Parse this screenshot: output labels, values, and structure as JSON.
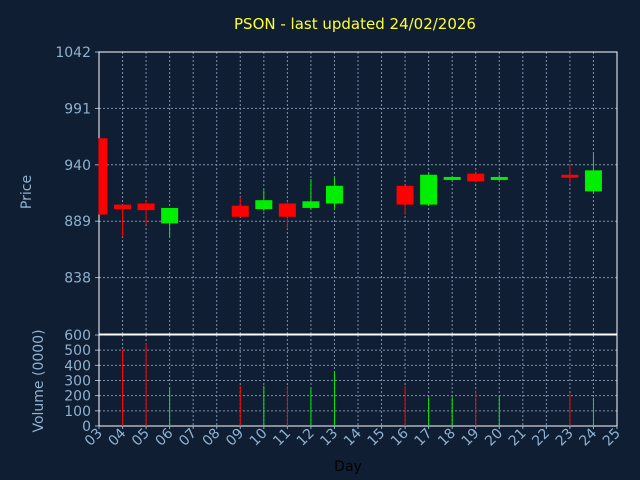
{
  "colors": {
    "background": "#0f1e33",
    "title": "#ffff33",
    "axis_text": "#8fb0cf",
    "grid": "#7f8fa8",
    "axis_line": "#ffffff",
    "up": "#00ee00",
    "down": "#ff0000"
  },
  "chart_data": {
    "type": "candlestick",
    "title": "PSON - last updated 24/02/2026",
    "xlabel": "Day",
    "price_ylabel": "Price",
    "volume_ylabel": "Volume (0000)",
    "price_ylim": [
      787,
      1042
    ],
    "price_ticks": [
      "1042",
      "991",
      "940",
      "889",
      "838"
    ],
    "volume_ylim": [
      0,
      600
    ],
    "volume_ticks": [
      "600",
      "500",
      "400",
      "300",
      "200",
      "100",
      "0"
    ],
    "x_ticks": [
      "03",
      "04",
      "05",
      "06",
      "07",
      "08",
      "09",
      "10",
      "11",
      "12",
      "13",
      "14",
      "15",
      "16",
      "17",
      "18",
      "19",
      "20",
      "21",
      "22",
      "23",
      "24",
      "25"
    ],
    "grid": true,
    "candles": [
      {
        "day": "03",
        "open": 964,
        "high": 964,
        "low": 895,
        "close": 895,
        "volume": 0
      },
      {
        "day": "04",
        "open": 904,
        "high": 904,
        "low": 875,
        "close": 900,
        "volume": 500
      },
      {
        "day": "05",
        "open": 905,
        "high": 908,
        "low": 886,
        "close": 899,
        "volume": 545
      },
      {
        "day": "06",
        "open": 887,
        "high": 901,
        "low": 875,
        "close": 901,
        "volume": 250
      },
      {
        "day": "09",
        "open": 903,
        "high": 911,
        "low": 893,
        "close": 893,
        "volume": 265
      },
      {
        "day": "10",
        "open": 900,
        "high": 917,
        "low": 898,
        "close": 908,
        "volume": 265
      },
      {
        "day": "11",
        "open": 905,
        "high": 907,
        "low": 882,
        "close": 893,
        "volume": 265
      },
      {
        "day": "12",
        "open": 901,
        "high": 927,
        "low": 900,
        "close": 907,
        "volume": 250
      },
      {
        "day": "13",
        "open": 905,
        "high": 928,
        "low": 900,
        "close": 921,
        "volume": 360
      },
      {
        "day": "16",
        "open": 921,
        "high": 921,
        "low": 895,
        "close": 904,
        "volume": 265
      },
      {
        "day": "17",
        "open": 904,
        "high": 933,
        "low": 903,
        "close": 931,
        "volume": 190
      },
      {
        "day": "18",
        "open": 927,
        "high": 930,
        "low": 926,
        "close": 929,
        "volume": 190
      },
      {
        "day": "19",
        "open": 932,
        "high": 934,
        "low": 924,
        "close": 925,
        "volume": 235
      },
      {
        "day": "20",
        "open": 927,
        "high": 931,
        "low": 926,
        "close": 929,
        "volume": 200
      },
      {
        "day": "23",
        "open": 931,
        "high": 941,
        "low": 923,
        "close": 929,
        "volume": 215
      },
      {
        "day": "24",
        "open": 916,
        "high": 951,
        "low": 914,
        "close": 935,
        "volume": 185
      }
    ]
  }
}
